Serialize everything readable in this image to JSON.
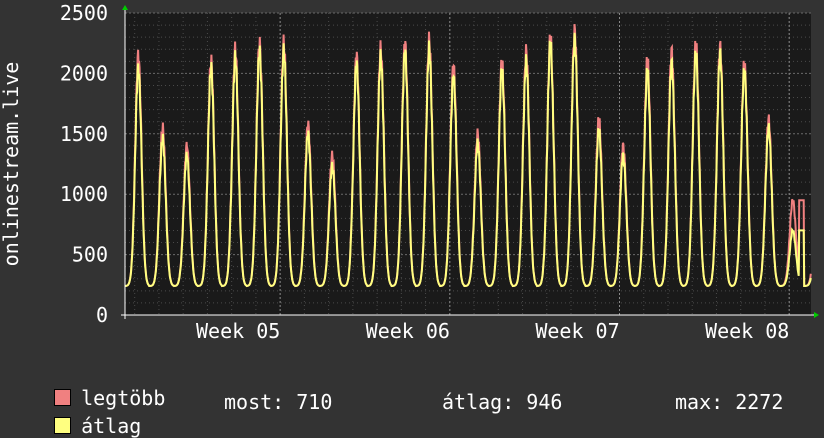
{
  "chart_data": {
    "type": "line",
    "title": "",
    "ylabel": "onlinestream.live",
    "xlabel": "",
    "ylim": [
      0,
      2500
    ],
    "yticks": [
      0,
      500,
      1000,
      1500,
      2000,
      2500
    ],
    "ytick_labels": [
      "0",
      "500",
      "1000",
      "1500",
      "2000",
      "2500"
    ],
    "x_range_days": [
      0,
      28.3
    ],
    "xticks": [
      {
        "day": 6.4,
        "label": "Week 05"
      },
      {
        "day": 13.4,
        "label": "Week 06"
      },
      {
        "day": 20.4,
        "label": "Week 07"
      },
      {
        "day": 27.4,
        "label": "Week 08"
      }
    ],
    "daily_peaks": {
      "max": [
        2150,
        1550,
        1400,
        2100,
        2200,
        2250,
        2250,
        1580,
        1320,
        2150,
        2200,
        2250,
        2270,
        2060,
        1500,
        2100,
        2180,
        2300,
        2350,
        1620,
        1400,
        2110,
        2180,
        2240,
        2220,
        2080,
        1620,
        950
      ],
      "avg": [
        2040,
        1460,
        1320,
        2040,
        2130,
        2180,
        2180,
        1500,
        1230,
        2080,
        2130,
        2180,
        2200,
        1970,
        1420,
        2030,
        2100,
        2250,
        2280,
        1530,
        1320,
        2020,
        2080,
        2160,
        2160,
        2020,
        1550,
        700
      ]
    },
    "daily_trough": 240,
    "grid": true,
    "legend_placement": "bottom",
    "series": [
      {
        "name": "legtöbb",
        "color": "#f08080"
      },
      {
        "name": "átlag",
        "color": "#ffff80"
      }
    ]
  },
  "legend": {
    "max_label": "legtöbb",
    "avg_label": "átlag"
  },
  "stats": {
    "now": "most: 710",
    "avg": "átlag: 946",
    "max": "max: 2272"
  },
  "colors": {
    "background": "#333333",
    "plot_bg": "#1a1a1a",
    "grid": "#5a5a5a",
    "max_series": "#f08080",
    "avg_series": "#ffff80",
    "axis_arrow": "#00cc00"
  }
}
